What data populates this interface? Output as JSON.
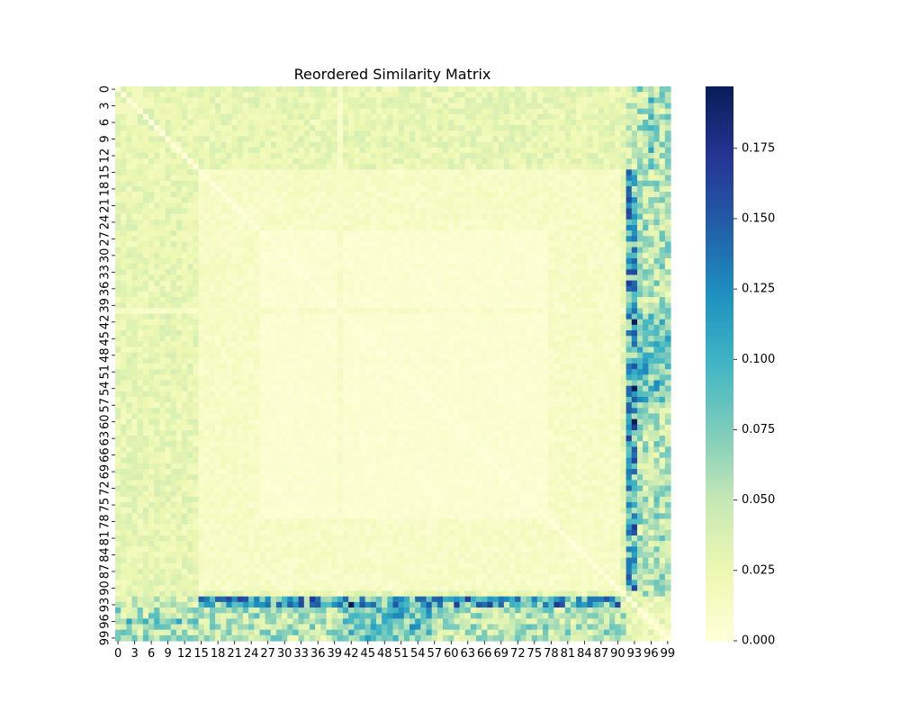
{
  "chart_data": {
    "type": "heatmap",
    "title": "Reordered Similarity Matrix",
    "xlabel": "",
    "ylabel": "",
    "n": 100,
    "x_tick_labels": [
      "0",
      "3",
      "6",
      "9",
      "12",
      "15",
      "18",
      "21",
      "24",
      "27",
      "30",
      "33",
      "36",
      "39",
      "42",
      "45",
      "48",
      "51",
      "54",
      "57",
      "60",
      "63",
      "66",
      "69",
      "72",
      "75",
      "78",
      "81",
      "84",
      "87",
      "90",
      "93",
      "96",
      "99"
    ],
    "y_tick_labels": [
      "0",
      "3",
      "6",
      "9",
      "12",
      "15",
      "18",
      "21",
      "24",
      "27",
      "30",
      "33",
      "36",
      "39",
      "42",
      "45",
      "48",
      "51",
      "54",
      "57",
      "60",
      "63",
      "66",
      "69",
      "72",
      "75",
      "78",
      "81",
      "84",
      "87",
      "90",
      "93",
      "96",
      "99"
    ],
    "colorbar": {
      "colormap": "YlGnBu",
      "vmin": 0.0,
      "vmax": 0.197,
      "tick_labels": [
        "0.000",
        "0.025",
        "0.050",
        "0.075",
        "0.100",
        "0.125",
        "0.150",
        "0.175"
      ],
      "tick_values": [
        0.0,
        0.025,
        0.05,
        0.075,
        0.1,
        0.125,
        0.15,
        0.175
      ]
    },
    "structure": {
      "block_core": [
        15,
        90
      ],
      "inner_block": [
        26,
        77
      ],
      "outlier_rows_cols": [
        40,
        92,
        93,
        94,
        95,
        96,
        97,
        98,
        99
      ],
      "strongest_cells": [
        [
          42,
          93
        ],
        [
          93,
          42
        ],
        [
          54,
          93
        ],
        [
          60,
          93
        ]
      ]
    }
  }
}
